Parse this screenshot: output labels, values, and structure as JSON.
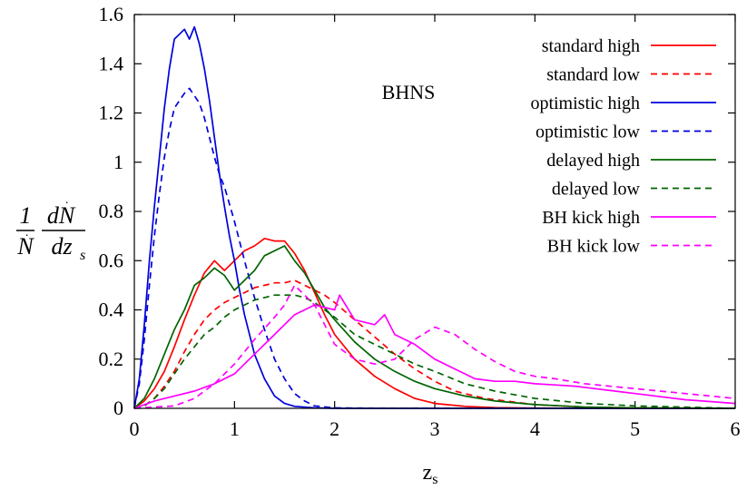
{
  "chart_data": {
    "type": "line",
    "title": "",
    "annotation": "BHNS",
    "xlabel": "z",
    "xlabel_sub": "s",
    "ylabel": "(1/Ṅ) dṄ/dz_s",
    "xlim": [
      0,
      6
    ],
    "ylim": [
      0,
      1.6
    ],
    "xticks": [
      "0",
      "1",
      "2",
      "3",
      "4",
      "5",
      "6"
    ],
    "yticks": [
      "0",
      "0.2",
      "0.4",
      "0.6",
      "0.8",
      "1",
      "1.2",
      "1.4",
      "1.6"
    ],
    "grid": false,
    "legend_position": "top-right",
    "series": [
      {
        "name": "standard high",
        "color": "#ff0000",
        "dash": "solid",
        "x": [
          0,
          0.1,
          0.2,
          0.3,
          0.4,
          0.5,
          0.6,
          0.7,
          0.8,
          0.9,
          1.0,
          1.1,
          1.2,
          1.3,
          1.4,
          1.5,
          1.6,
          1.7,
          1.8,
          1.9,
          2.0,
          2.2,
          2.4,
          2.6,
          2.8,
          3.0,
          3.3,
          3.6,
          4.0,
          5.0,
          6.0
        ],
        "y": [
          0,
          0.03,
          0.08,
          0.15,
          0.25,
          0.36,
          0.46,
          0.55,
          0.6,
          0.56,
          0.6,
          0.64,
          0.66,
          0.69,
          0.68,
          0.68,
          0.63,
          0.56,
          0.47,
          0.38,
          0.3,
          0.2,
          0.13,
          0.08,
          0.04,
          0.02,
          0.008,
          0.003,
          0.001,
          0,
          0
        ]
      },
      {
        "name": "standard low",
        "color": "#ff0000",
        "dash": "dashed",
        "x": [
          0,
          0.1,
          0.2,
          0.3,
          0.4,
          0.5,
          0.6,
          0.7,
          0.8,
          0.9,
          1.0,
          1.1,
          1.2,
          1.3,
          1.4,
          1.5,
          1.6,
          1.7,
          1.8,
          1.9,
          2.0,
          2.2,
          2.4,
          2.6,
          2.8,
          3.0,
          3.2,
          3.5,
          4.0,
          4.5,
          5.0,
          6.0
        ],
        "y": [
          0,
          0.01,
          0.04,
          0.09,
          0.15,
          0.23,
          0.3,
          0.36,
          0.4,
          0.43,
          0.45,
          0.47,
          0.49,
          0.5,
          0.51,
          0.51,
          0.52,
          0.5,
          0.48,
          0.46,
          0.43,
          0.36,
          0.29,
          0.22,
          0.16,
          0.11,
          0.07,
          0.04,
          0.015,
          0.005,
          0.002,
          0
        ]
      },
      {
        "name": "optimistic high",
        "color": "#0000dd",
        "dash": "solid",
        "x": [
          0,
          0.05,
          0.1,
          0.15,
          0.2,
          0.25,
          0.3,
          0.35,
          0.4,
          0.45,
          0.5,
          0.55,
          0.6,
          0.65,
          0.7,
          0.75,
          0.8,
          0.85,
          0.9,
          0.95,
          1.0,
          1.05,
          1.1,
          1.2,
          1.3,
          1.4,
          1.5,
          1.6,
          1.8,
          2.0,
          3.0,
          6.0
        ],
        "y": [
          0,
          0.12,
          0.34,
          0.6,
          0.82,
          1.02,
          1.22,
          1.38,
          1.5,
          1.52,
          1.54,
          1.5,
          1.55,
          1.48,
          1.38,
          1.25,
          1.1,
          0.95,
          0.82,
          0.7,
          0.6,
          0.48,
          0.38,
          0.22,
          0.12,
          0.05,
          0.02,
          0.008,
          0.002,
          0,
          0,
          0
        ]
      },
      {
        "name": "optimistic low",
        "color": "#0000dd",
        "dash": "dashed",
        "x": [
          0,
          0.05,
          0.1,
          0.15,
          0.2,
          0.25,
          0.3,
          0.35,
          0.4,
          0.45,
          0.5,
          0.55,
          0.6,
          0.65,
          0.7,
          0.75,
          0.8,
          0.85,
          0.9,
          0.95,
          1.0,
          1.1,
          1.2,
          1.3,
          1.4,
          1.5,
          1.6,
          1.7,
          1.8,
          2.0,
          2.5,
          6.0
        ],
        "y": [
          0,
          0.1,
          0.28,
          0.5,
          0.7,
          0.87,
          1.02,
          1.13,
          1.22,
          1.25,
          1.28,
          1.3,
          1.27,
          1.24,
          1.18,
          1.1,
          1.02,
          0.95,
          0.9,
          0.83,
          0.76,
          0.6,
          0.45,
          0.32,
          0.2,
          0.12,
          0.06,
          0.03,
          0.01,
          0.002,
          0,
          0
        ]
      },
      {
        "name": "delayed high",
        "color": "#006400",
        "dash": "solid",
        "x": [
          0,
          0.1,
          0.2,
          0.3,
          0.4,
          0.5,
          0.6,
          0.7,
          0.8,
          0.9,
          1.0,
          1.1,
          1.2,
          1.3,
          1.4,
          1.5,
          1.6,
          1.7,
          1.8,
          1.9,
          2.0,
          2.2,
          2.4,
          2.6,
          2.8,
          3.0,
          3.3,
          3.6,
          4.0,
          4.5,
          5.0,
          6.0
        ],
        "y": [
          0,
          0.04,
          0.12,
          0.22,
          0.32,
          0.4,
          0.5,
          0.53,
          0.57,
          0.54,
          0.48,
          0.52,
          0.56,
          0.62,
          0.64,
          0.66,
          0.6,
          0.55,
          0.48,
          0.41,
          0.36,
          0.27,
          0.2,
          0.15,
          0.11,
          0.08,
          0.05,
          0.03,
          0.015,
          0.005,
          0.002,
          0
        ]
      },
      {
        "name": "delayed low",
        "color": "#006400",
        "dash": "dashed",
        "x": [
          0,
          0.1,
          0.2,
          0.3,
          0.4,
          0.5,
          0.6,
          0.7,
          0.8,
          0.9,
          1.0,
          1.1,
          1.2,
          1.3,
          1.4,
          1.5,
          1.6,
          1.7,
          1.8,
          1.9,
          2.0,
          2.2,
          2.4,
          2.6,
          2.8,
          3.0,
          3.3,
          3.6,
          4.0,
          4.5,
          5.0,
          6.0
        ],
        "y": [
          0,
          0.01,
          0.04,
          0.08,
          0.14,
          0.2,
          0.25,
          0.3,
          0.33,
          0.37,
          0.4,
          0.42,
          0.44,
          0.45,
          0.46,
          0.46,
          0.46,
          0.45,
          0.43,
          0.4,
          0.37,
          0.3,
          0.26,
          0.22,
          0.18,
          0.15,
          0.1,
          0.07,
          0.04,
          0.02,
          0.01,
          0
        ]
      },
      {
        "name": "BH kick high",
        "color": "#ff00ff",
        "dash": "solid",
        "x": [
          0,
          0.2,
          0.4,
          0.6,
          0.8,
          1.0,
          1.2,
          1.4,
          1.6,
          1.8,
          2.0,
          2.05,
          2.2,
          2.4,
          2.5,
          2.6,
          2.8,
          3.0,
          3.2,
          3.4,
          3.6,
          3.8,
          4.0,
          4.2,
          4.4,
          4.6,
          4.8,
          5.0,
          5.5,
          6.0
        ],
        "y": [
          0,
          0.03,
          0.05,
          0.07,
          0.1,
          0.14,
          0.22,
          0.3,
          0.38,
          0.42,
          0.4,
          0.46,
          0.36,
          0.34,
          0.38,
          0.3,
          0.26,
          0.2,
          0.16,
          0.12,
          0.11,
          0.11,
          0.1,
          0.095,
          0.09,
          0.08,
          0.07,
          0.06,
          0.035,
          0.02
        ]
      },
      {
        "name": "BH kick low",
        "color": "#ff00ff",
        "dash": "dashed",
        "x": [
          0,
          0.4,
          0.6,
          0.8,
          1.0,
          1.2,
          1.4,
          1.5,
          1.6,
          1.8,
          2.0,
          2.2,
          2.4,
          2.6,
          2.8,
          3.0,
          3.2,
          3.4,
          3.6,
          3.8,
          4.0,
          4.2,
          4.5,
          5.0,
          5.5,
          6.0
        ],
        "y": [
          0,
          0.01,
          0.04,
          0.1,
          0.18,
          0.28,
          0.37,
          0.42,
          0.5,
          0.42,
          0.26,
          0.2,
          0.18,
          0.2,
          0.28,
          0.33,
          0.3,
          0.24,
          0.19,
          0.15,
          0.13,
          0.12,
          0.1,
          0.08,
          0.06,
          0.04
        ]
      }
    ]
  }
}
